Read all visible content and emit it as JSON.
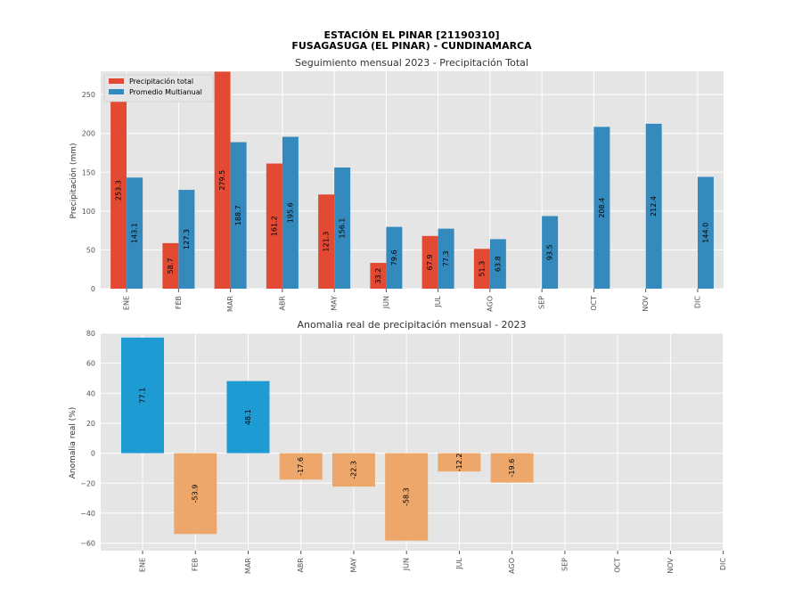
{
  "figure": {
    "title_line1": "ESTACIÓN EL PINAR [21190310]",
    "title_line2": "FUSAGASUGA (EL PINAR) - CUNDINAMARCA"
  },
  "chart_data": [
    {
      "type": "bar",
      "title": "Seguimiento mensual 2023 - Precipitación Total",
      "xlabel": "",
      "ylabel": "Precipitación (mm)",
      "categories": [
        "ENE",
        "FEB",
        "MAR",
        "ABR",
        "MAY",
        "JUN",
        "JUL",
        "AGO",
        "SEP",
        "OCT",
        "NOV",
        "DIC"
      ],
      "series": [
        {
          "name": "Precipitación total",
          "color": "#e24a33",
          "values": [
            253.3,
            58.7,
            279.5,
            161.2,
            121.3,
            33.2,
            67.9,
            51.3,
            null,
            null,
            null,
            null
          ],
          "labels": [
            "253.3",
            "58.7",
            "279.5",
            "161.2",
            "121.3",
            "33.2",
            "67.9",
            "51.3",
            "",
            "",
            "",
            ""
          ]
        },
        {
          "name": "Promedio Multianual",
          "color": "#348abd",
          "values": [
            143.1,
            127.3,
            188.7,
            195.6,
            156.1,
            79.6,
            77.3,
            63.8,
            93.5,
            208.4,
            212.4,
            144.0
          ],
          "labels": [
            "143.1",
            "127.3",
            "188.7",
            "195.6",
            "156.1",
            "79.6",
            "77.3",
            "63.8",
            "93.5",
            "208.4",
            "212.4",
            "144.0"
          ]
        }
      ],
      "ylim": [
        0,
        280
      ],
      "yticks": [
        "0",
        "50",
        "100",
        "150",
        "200",
        "250"
      ],
      "grid": true,
      "legend": "top-left"
    },
    {
      "type": "bar",
      "title": "Anomalia real de precipitación mensual - 2023",
      "xlabel": "",
      "ylabel": "Anomalia real (%)",
      "categories": [
        "ENE",
        "FEB",
        "MAR",
        "ABR",
        "MAY",
        "JUN",
        "JUL",
        "AGO",
        "SEP",
        "OCT",
        "NOV",
        "DIC"
      ],
      "values": [
        77.1,
        -53.9,
        48.1,
        -17.6,
        -22.3,
        -58.3,
        -12.2,
        -19.6,
        null,
        null,
        null,
        null
      ],
      "labels": [
        "77.1",
        "-53.9",
        "48.1",
        "-17.6",
        "-22.3",
        "-58.3",
        "-12.2",
        "-19.6",
        "",
        "",
        "",
        ""
      ],
      "colors": {
        "positive": "#1f9bd4",
        "negative": "#eea76a"
      },
      "ylim": [
        -65,
        80
      ],
      "yticks": [
        "−60",
        "−40",
        "−20",
        "0",
        "20",
        "40",
        "60",
        "80"
      ],
      "grid": true
    }
  ]
}
